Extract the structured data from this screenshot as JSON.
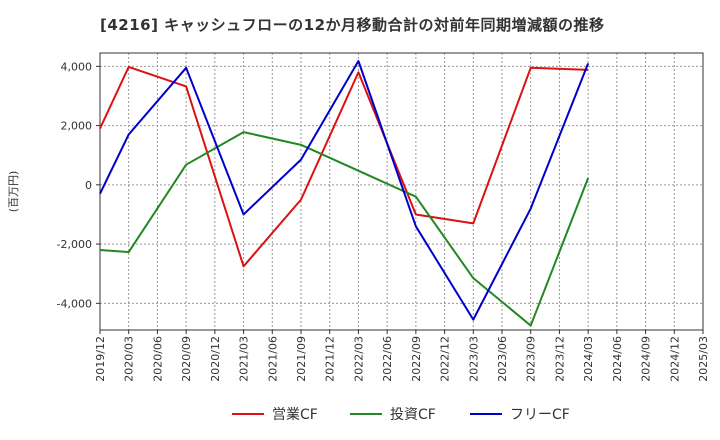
{
  "chart_data": {
    "type": "line",
    "title": "[4216]  キャッシュフローの12か月移動合計の対前年同期増減額の推移",
    "ylabel": "(百万円)",
    "xlabel": "",
    "ylim": [
      -4900,
      4450
    ],
    "yticks": [
      4000,
      2000,
      0,
      -2000,
      -4000
    ],
    "ytick_labels": [
      "4,000",
      "2,000",
      "0",
      "-2,000",
      "-4,000"
    ],
    "grid": true,
    "legend_position": "bottom",
    "categories": [
      "2019/12",
      "2020/03",
      "2020/06",
      "2020/09",
      "2020/12",
      "2021/03",
      "2021/06",
      "2021/09",
      "2021/12",
      "2022/03",
      "2022/06",
      "2022/09",
      "2022/12",
      "2023/03",
      "2023/06",
      "2023/09",
      "2023/12",
      "2024/03",
      "2024/06",
      "2024/09",
      "2024/12",
      "2025/03"
    ],
    "series": [
      {
        "name": "営業CF",
        "color": "#dd1111",
        "values": [
          1900,
          3980,
          null,
          3320,
          null,
          -2750,
          null,
          -500,
          null,
          3800,
          null,
          -1000,
          null,
          -1300,
          null,
          3950,
          null,
          3880,
          null,
          null,
          null,
          null
        ]
      },
      {
        "name": "投資CF",
        "color": "#228822",
        "values": [
          -2200,
          -2270,
          null,
          680,
          null,
          1780,
          null,
          1350,
          null,
          null,
          null,
          -400,
          null,
          -3150,
          null,
          -4750,
          null,
          230,
          null,
          null,
          null,
          null
        ]
      },
      {
        "name": "フリーCF",
        "color": "#0000cc",
        "values": [
          -300,
          1700,
          null,
          3950,
          null,
          -1000,
          null,
          850,
          null,
          4180,
          null,
          -1400,
          null,
          -4550,
          null,
          -800,
          null,
          4100,
          null,
          null,
          null,
          null
        ]
      }
    ]
  }
}
